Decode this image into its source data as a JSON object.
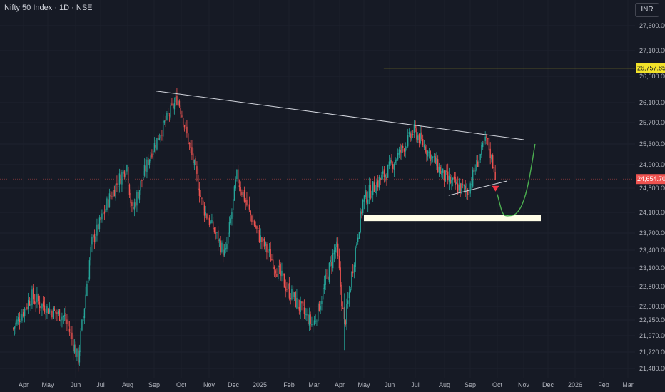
{
  "header": {
    "title": "Nifty 50 Index · 1D · NSE",
    "currency": "INR"
  },
  "colors": {
    "background": "#161a25",
    "up": "#26a69a",
    "down": "#ef5350",
    "resistance_line": "#f2e22a",
    "trendline": "#d1d4dc",
    "support_zone": "#fffde7",
    "projection": "#4caf50",
    "arrow": "#f23645"
  },
  "chart_data": {
    "type": "candlestick",
    "title": "Nifty 50 Index · 1D · NSE",
    "y_axis": {
      "ticks": [
        21480,
        21720,
        21970,
        22250,
        22500,
        22800,
        23100,
        23400,
        23700,
        24100,
        24500,
        24900,
        25300,
        25700,
        26100,
        26600,
        27100,
        27600
      ],
      "tick_labels": [
        "21,480.00",
        "21,720.00",
        "21,970.00",
        "22,250.00",
        "22,500.00",
        "22,800.00",
        "23,100.00",
        "23,400.00",
        "23,700.00",
        "24,100.00",
        "24,500.00",
        "24,900.00",
        "25,300.00",
        "25,700.00",
        "26,100.00",
        "26,600.00",
        "27,100.00",
        "27,600.00"
      ]
    },
    "x_axis": {
      "labels": [
        "Apr",
        "May",
        "Jun",
        "Jul",
        "Aug",
        "Sep",
        "Oct",
        "Nov",
        "Dec",
        "2025",
        "Feb",
        "Mar",
        "Apr",
        "May",
        "Jun",
        "Jul",
        "Aug",
        "Sep",
        "Oct",
        "Nov",
        "Dec",
        "2026",
        "Feb",
        "Mar"
      ]
    },
    "series_trend": [
      {
        "date": "2024-03-20",
        "close": 22100
      },
      {
        "date": "2024-04-10",
        "close": 22650
      },
      {
        "date": "2024-05-01",
        "close": 22450
      },
      {
        "date": "2024-05-20",
        "close": 22300
      },
      {
        "date": "2024-06-04",
        "close": 21600
      },
      {
        "date": "2024-06-20",
        "close": 23500
      },
      {
        "date": "2024-07-10",
        "close": 24300
      },
      {
        "date": "2024-07-31",
        "close": 24900
      },
      {
        "date": "2024-08-06",
        "close": 24100
      },
      {
        "date": "2024-08-30",
        "close": 25200
      },
      {
        "date": "2024-09-27",
        "close": 26200
      },
      {
        "date": "2024-10-25",
        "close": 24200
      },
      {
        "date": "2024-11-21",
        "close": 23300
      },
      {
        "date": "2024-12-05",
        "close": 24700
      },
      {
        "date": "2024-12-31",
        "close": 23650
      },
      {
        "date": "2025-01-27",
        "close": 22850
      },
      {
        "date": "2025-02-28",
        "close": 22150
      },
      {
        "date": "2025-03-28",
        "close": 23500
      },
      {
        "date": "2025-04-07",
        "close": 22150
      },
      {
        "date": "2025-04-30",
        "close": 24300
      },
      {
        "date": "2025-05-30",
        "close": 24800
      },
      {
        "date": "2025-06-30",
        "close": 25550
      },
      {
        "date": "2025-07-31",
        "close": 24700
      },
      {
        "date": "2025-08-13",
        "close": 24550
      },
      {
        "date": "2025-08-29",
        "close": 24450
      },
      {
        "date": "2025-09-19",
        "close": 25400
      },
      {
        "date": "2025-09-30",
        "close": 24654.7
      }
    ],
    "last_price": 24654.7,
    "last_price_label": "24,654.70",
    "resistance_level": 26757.85,
    "resistance_label": "26,757.85",
    "support_zone": [
      23960,
      24030
    ],
    "descending_trendline": [
      {
        "date": "2024-08-30",
        "price": 26320
      },
      {
        "date": "2025-11-01",
        "price": 25380
      }
    ],
    "lower_trendline": [
      {
        "date": "2025-08-06",
        "price": 24380
      },
      {
        "date": "2025-10-12",
        "price": 24620
      }
    ],
    "projection_path": "down to support zone then up toward 25,300"
  }
}
